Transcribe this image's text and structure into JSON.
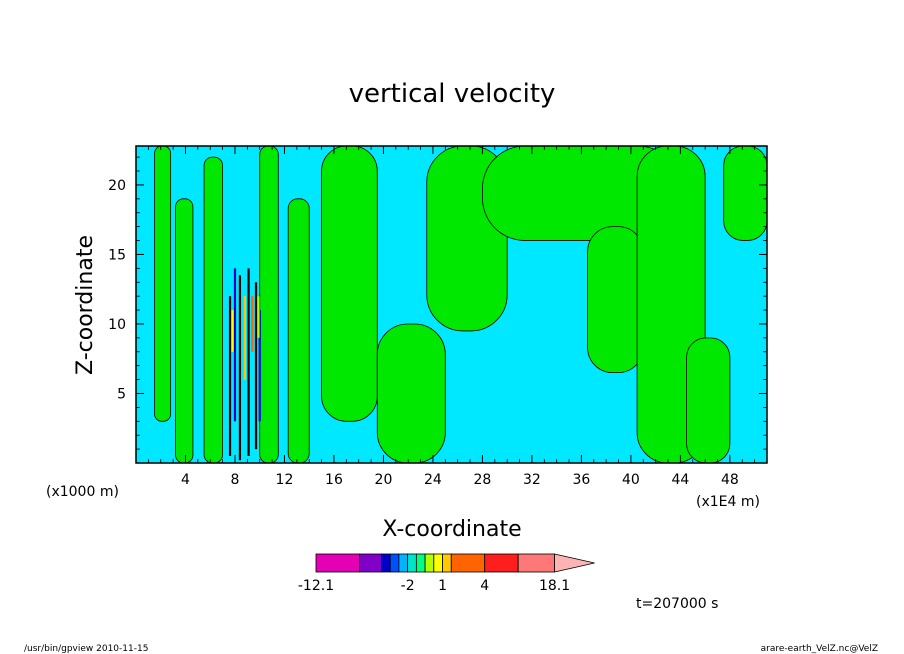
{
  "chart_data": {
    "type": "heatmap",
    "title": "vertical velocity",
    "xlabel": "X-coordinate",
    "ylabel": "Z-coordinate",
    "x_unit_label": "(x1E4 m)",
    "y_unit_label": "(x1000 m)",
    "xlim": [
      0,
      51
    ],
    "ylim": [
      0,
      22.8
    ],
    "x_ticks": [
      4,
      8,
      12,
      16,
      20,
      24,
      28,
      32,
      36,
      40,
      44,
      48
    ],
    "y_ticks": [
      5,
      10,
      15,
      20
    ],
    "x_tick_labels": [
      "4",
      "8",
      "12",
      "16",
      "20",
      "24",
      "28",
      "32",
      "36",
      "40",
      "44",
      "48"
    ],
    "y_tick_labels": [
      "5",
      "10",
      "15",
      "20"
    ],
    "colorbar": {
      "colors": [
        "#e400b4",
        "#8000c8",
        "#0000c8",
        "#0050ff",
        "#00b4ff",
        "#00e4c8",
        "#00ff80",
        "#b4ff00",
        "#ffff00",
        "#ffc800",
        "#ff6400",
        "#ff1e1e",
        "#ff7878",
        "#ffb4b4"
      ],
      "weights": [
        3,
        1.5,
        0.6,
        0.6,
        0.6,
        0.6,
        0.6,
        0.6,
        0.6,
        0.6,
        2.3,
        2.3,
        2.5,
        2.3
      ],
      "tick_labels": [
        "-12.1",
        "-2",
        "1",
        "4",
        "18.1"
      ],
      "tick_boundaries": [
        0,
        5,
        9,
        11,
        14
      ]
    },
    "green_regions": [
      {
        "x": [
          1.5,
          2.8
        ],
        "z": [
          3,
          22.8
        ]
      },
      {
        "x": [
          3.2,
          4.6
        ],
        "z": [
          0,
          19
        ]
      },
      {
        "x": [
          5.5,
          7
        ],
        "z": [
          0,
          22
        ]
      },
      {
        "x": [
          10,
          11.5
        ],
        "z": [
          0,
          22.8
        ]
      },
      {
        "x": [
          12.3,
          14
        ],
        "z": [
          0,
          19
        ]
      },
      {
        "x": [
          15,
          19.5
        ],
        "z": [
          3,
          22.8
        ]
      },
      {
        "x": [
          19.5,
          25
        ],
        "z": [
          0,
          10
        ]
      },
      {
        "x": [
          23.5,
          30
        ],
        "z": [
          9.5,
          22.8
        ]
      },
      {
        "x": [
          28,
          44
        ],
        "z": [
          16,
          22.8
        ]
      },
      {
        "x": [
          36.5,
          41
        ],
        "z": [
          6.5,
          17
        ]
      },
      {
        "x": [
          40.5,
          46
        ],
        "z": [
          0,
          22.8
        ]
      },
      {
        "x": [
          44.5,
          48
        ],
        "z": [
          0,
          9
        ]
      },
      {
        "x": [
          47.5,
          51
        ],
        "z": [
          16,
          22.8
        ]
      }
    ],
    "near_zero_color": "#00e8ff",
    "positive_color": "#00e800"
  },
  "annotations": {
    "time": "t=207000 s",
    "footer_left": "/usr/bin/gpview   2010-11-15",
    "footer_right": "arare-earth_VelZ.nc@VelZ"
  }
}
